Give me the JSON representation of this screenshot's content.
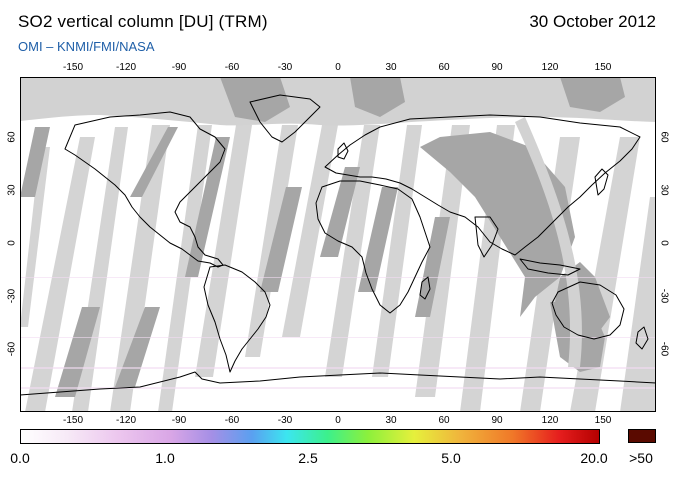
{
  "header": {
    "title": "SO2 vertical column [DU] (TRM)",
    "date": "30 October 2012",
    "credit": "OMI  –  KNMI/FMI/NASA"
  },
  "map": {
    "projection": "equirectangular",
    "lon_ticks": [
      "-150",
      "-120",
      "-90",
      "-60",
      "-30",
      "0",
      "30",
      "60",
      "90",
      "120",
      "150"
    ],
    "lat_ticks": [
      "60",
      "30",
      "0",
      "-30",
      "-60"
    ],
    "ocean_color": "#ffffff",
    "no_data_dark": "#a6a6a6",
    "no_data_light": "#d2d2d2",
    "coastline_color": "#000000"
  },
  "colorbar": {
    "labels": [
      "0.0",
      "1.0",
      "2.5",
      "5.0",
      "20.0"
    ],
    "max_label": ">50",
    "max_color": "#5a0a00",
    "stops": [
      "#ffffff",
      "#f2dcf2",
      "#d9a6e6",
      "#a58fe6",
      "#5aa0f0",
      "#3ce6f0",
      "#3cf08c",
      "#8cf03c",
      "#e6f03c",
      "#f0b43c",
      "#f07828",
      "#e61e1e",
      "#b40000"
    ]
  }
}
